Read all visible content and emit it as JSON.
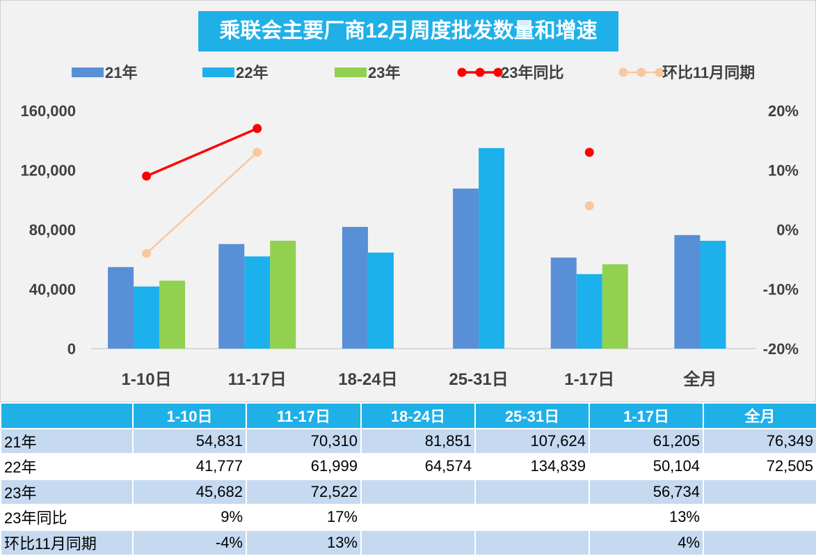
{
  "title": "乘联会主要厂商12月周度批发数量和增速",
  "colors": {
    "s21": "#588fd6",
    "s22": "#1cb0ec",
    "s23": "#92d050",
    "yoy": "#ff0000",
    "mom": "#f8c8a0",
    "header": "#1fb0e8",
    "band": "#c5d9f0"
  },
  "chart_data": {
    "type": "bar",
    "categories": [
      "1-10日",
      "11-17日",
      "18-24日",
      "25-31日",
      "1-17日",
      "全月"
    ],
    "series": [
      {
        "name": "21年",
        "values": [
          54831,
          70310,
          81851,
          107624,
          61205,
          76349
        ]
      },
      {
        "name": "22年",
        "values": [
          41777,
          61999,
          64574,
          134839,
          50104,
          72505
        ]
      },
      {
        "name": "23年",
        "values": [
          45682,
          72522,
          null,
          null,
          56734,
          null
        ]
      }
    ],
    "line_series": [
      {
        "name": "23年同比",
        "values": [
          0.09,
          0.17,
          null,
          null,
          0.13,
          null
        ]
      },
      {
        "name": "环比11月同期",
        "values": [
          -0.04,
          0.13,
          null,
          null,
          0.04,
          null
        ]
      }
    ],
    "ylim": [
      0,
      160000
    ],
    "y_ticks": [
      "0",
      "40,000",
      "80,000",
      "120,000",
      "160,000"
    ],
    "y2lim": [
      -0.2,
      0.2
    ],
    "y2_ticks": [
      "-20%",
      "-10%",
      "0%",
      "10%",
      "20%"
    ],
    "legend_position": "top",
    "grid": false
  },
  "table": {
    "header": [
      "",
      "1-10日",
      "11-17日",
      "18-24日",
      "25-31日",
      "1-17日",
      "全月"
    ],
    "rows": [
      {
        "label": "21年",
        "cells": [
          "54,831",
          "70,310",
          "81,851",
          "107,624",
          "61,205",
          "76,349"
        ]
      },
      {
        "label": "22年",
        "cells": [
          "41,777",
          "61,999",
          "64,574",
          "134,839",
          "50,104",
          "72,505"
        ]
      },
      {
        "label": "23年",
        "cells": [
          "45,682",
          "72,522",
          "",
          "",
          "56,734",
          ""
        ]
      },
      {
        "label": "23年同比",
        "cells": [
          "9%",
          "17%",
          "",
          "",
          "13%",
          ""
        ]
      },
      {
        "label": "环比11月同期",
        "cells": [
          "-4%",
          "13%",
          "",
          "",
          "4%",
          ""
        ]
      }
    ]
  }
}
